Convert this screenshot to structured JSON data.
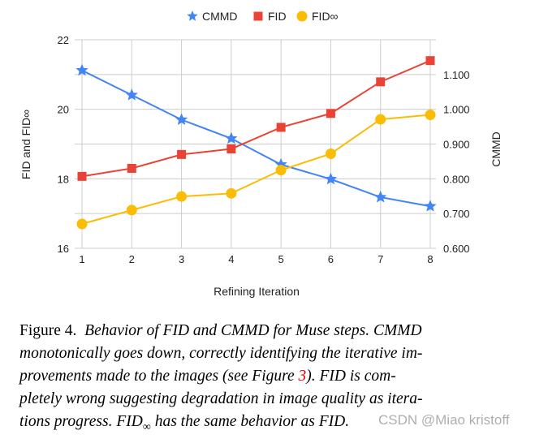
{
  "chart_data": {
    "type": "line",
    "xlabel": "Refining Iteration",
    "ylabel_left": "FID and FID∞",
    "ylabel_right": "CMMD",
    "x": [
      1,
      2,
      3,
      4,
      5,
      6,
      7,
      8
    ],
    "xticks": [
      "1",
      "2",
      "3",
      "4",
      "5",
      "6",
      "7",
      "8"
    ],
    "ylim_left": [
      16,
      22
    ],
    "yticks_left": [
      "16",
      "18",
      "20",
      "22"
    ],
    "ylim_right": [
      0.6,
      1.2
    ],
    "yticks_right": [
      "0.600",
      "0.700",
      "0.800",
      "0.900",
      "1.000",
      "1.100"
    ],
    "grid": true,
    "legend_position": "top",
    "series": [
      {
        "name": "CMMD",
        "axis": "right",
        "marker": "star",
        "color": "#4285f4",
        "values": [
          1.112,
          1.041,
          0.97,
          0.916,
          0.841,
          0.799,
          0.747,
          0.721
        ]
      },
      {
        "name": "FID",
        "axis": "left",
        "marker": "square",
        "color": "#ea4335",
        "values": [
          18.07,
          18.3,
          18.7,
          18.86,
          19.48,
          19.88,
          20.79,
          21.4
        ]
      },
      {
        "name": "FID∞",
        "axis": "left",
        "marker": "circle",
        "color": "#fbbc04",
        "values": [
          16.7,
          17.1,
          17.49,
          17.58,
          18.25,
          18.72,
          19.71,
          19.84
        ]
      }
    ]
  },
  "caption": {
    "label": "Figure 4.",
    "line1": "Behavior of FID and CMMD for Muse steps.  CMMD",
    "line2": "monotonically goes down, correctly identifying the iterative im-",
    "line3a": "provements made to the images (see Figure ",
    "ref": "3",
    "line3b": ").   FID is com-",
    "line4": "pletely wrong suggesting degradation in image quality as itera-",
    "line5a": "tions progress. FID",
    "line5sub": "∞",
    "line5b": " has the same behavior as FID."
  },
  "watermark": "CSDN @Miao kristoff"
}
